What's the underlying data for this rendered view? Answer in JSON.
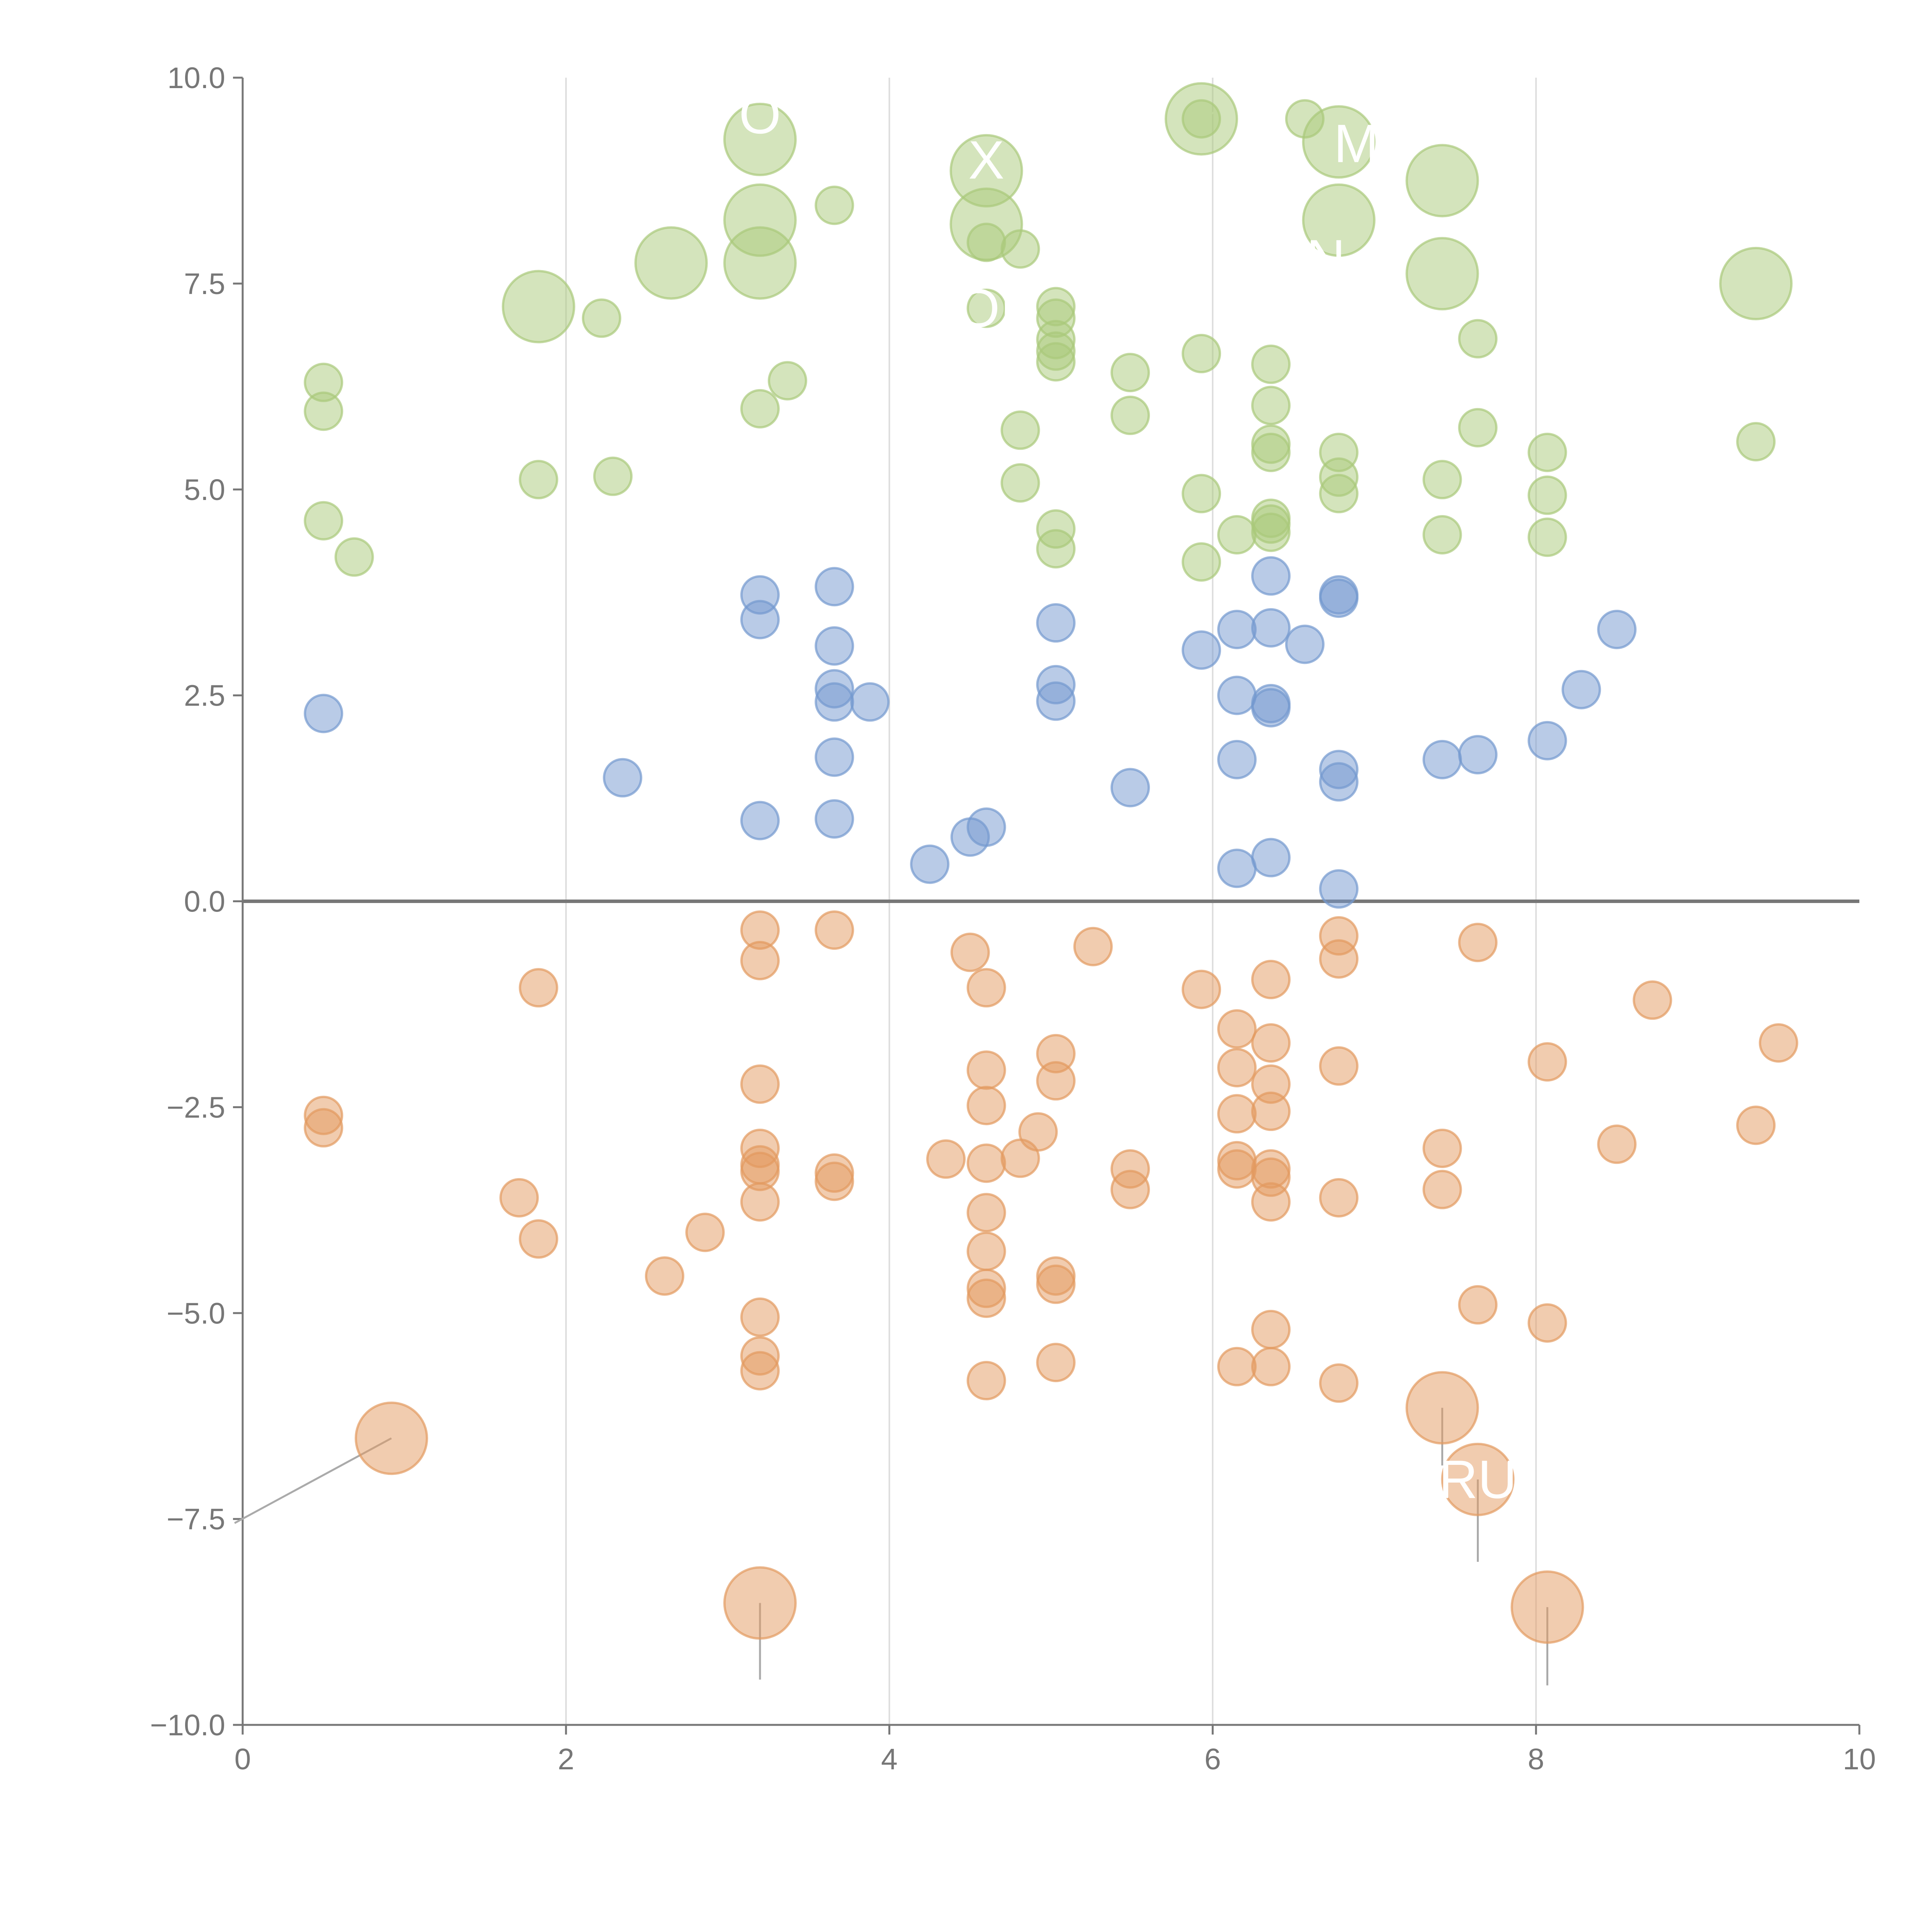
{
  "chart_data": {
    "type": "scatter",
    "title": "",
    "xlabel": "",
    "ylabel": "",
    "xlim": [
      0,
      10
    ],
    "ylim": [
      -10,
      10
    ],
    "x_ticks": [
      "0",
      "2",
      "4",
      "6",
      "8",
      "10"
    ],
    "y_ticks": [
      "10.0",
      "7.5",
      "5.0",
      "2.5",
      "0.0",
      "−2.5",
      "−5.0",
      "−7.5",
      "−10.0"
    ],
    "x_tick_values": [
      0,
      2,
      4,
      6,
      8,
      10
    ],
    "y_tick_values": [
      10,
      7.5,
      5,
      2.5,
      0,
      -2.5,
      -5,
      -7.5,
      -10
    ],
    "vertical_grid": [
      2,
      4,
      6,
      8
    ],
    "zero_line": 0,
    "colors": {
      "green": "#a9c97a",
      "blue": "#7398cf",
      "orange": "#e39a5f",
      "axis": "#777777",
      "grid": "#dddddd",
      "zero": "#777777"
    },
    "series": [
      {
        "name": "green",
        "color": "#a9c97a",
        "points": [
          [
            0.5,
            6.3
          ],
          [
            0.5,
            5.95
          ],
          [
            0.5,
            4.62
          ],
          [
            0.69,
            4.18
          ],
          [
            1.83,
            5.12
          ],
          [
            2.22,
            7.08
          ],
          [
            2.29,
            5.16
          ],
          [
            3.2,
            5.98
          ],
          [
            3.37,
            6.32
          ],
          [
            3.66,
            8.45
          ],
          [
            4.6,
            8.0
          ],
          [
            4.6,
            7.2
          ],
          [
            4.81,
            7.92
          ],
          [
            4.81,
            5.72
          ],
          [
            4.81,
            5.08
          ],
          [
            5.03,
            7.22
          ],
          [
            5.03,
            7.08
          ],
          [
            5.03,
            6.82
          ],
          [
            5.03,
            6.68
          ],
          [
            5.03,
            6.55
          ],
          [
            5.03,
            4.52
          ],
          [
            5.03,
            4.28
          ],
          [
            5.49,
            6.42
          ],
          [
            5.49,
            5.9
          ],
          [
            5.93,
            9.5
          ],
          [
            5.93,
            6.65
          ],
          [
            5.93,
            4.95
          ],
          [
            5.93,
            4.12
          ],
          [
            6.15,
            4.45
          ],
          [
            6.36,
            6.52
          ],
          [
            6.36,
            6.02
          ],
          [
            6.36,
            5.55
          ],
          [
            6.36,
            5.45
          ],
          [
            6.36,
            4.65
          ],
          [
            6.36,
            4.58
          ],
          [
            6.36,
            4.48
          ],
          [
            6.57,
            9.5
          ],
          [
            6.78,
            5.45
          ],
          [
            6.78,
            5.15
          ],
          [
            6.78,
            4.95
          ],
          [
            7.42,
            5.12
          ],
          [
            7.42,
            4.45
          ],
          [
            7.64,
            6.83
          ],
          [
            7.64,
            5.75
          ],
          [
            8.07,
            5.45
          ],
          [
            8.07,
            4.93
          ],
          [
            8.07,
            4.42
          ],
          [
            9.36,
            5.58
          ]
        ],
        "large_points": [
          [
            1.83,
            7.22
          ],
          [
            2.65,
            7.75
          ],
          [
            3.2,
            9.25
          ],
          [
            3.2,
            8.27
          ],
          [
            3.2,
            7.75
          ],
          [
            4.6,
            8.87
          ],
          [
            4.6,
            8.22
          ],
          [
            5.93,
            9.5
          ],
          [
            6.78,
            9.22
          ],
          [
            6.78,
            8.27
          ],
          [
            7.42,
            8.75
          ],
          [
            7.42,
            7.62
          ],
          [
            9.36,
            7.5
          ]
        ]
      },
      {
        "name": "blue",
        "color": "#7398cf",
        "points": [
          [
            0.5,
            2.28
          ],
          [
            2.35,
            1.5
          ],
          [
            3.2,
            3.72
          ],
          [
            3.2,
            3.42
          ],
          [
            3.2,
            0.98
          ],
          [
            3.66,
            3.82
          ],
          [
            3.66,
            3.1
          ],
          [
            3.66,
            2.58
          ],
          [
            3.66,
            2.42
          ],
          [
            3.66,
            1.75
          ],
          [
            3.66,
            1.0
          ],
          [
            3.88,
            2.42
          ],
          [
            4.25,
            0.45
          ],
          [
            4.5,
            0.78
          ],
          [
            4.6,
            0.9
          ],
          [
            5.03,
            3.38
          ],
          [
            5.03,
            2.63
          ],
          [
            5.03,
            2.43
          ],
          [
            5.49,
            1.38
          ],
          [
            5.93,
            3.05
          ],
          [
            6.15,
            3.3
          ],
          [
            6.15,
            2.5
          ],
          [
            6.15,
            1.72
          ],
          [
            6.15,
            0.4
          ],
          [
            6.36,
            3.95
          ],
          [
            6.36,
            3.32
          ],
          [
            6.36,
            2.4
          ],
          [
            6.36,
            2.35
          ],
          [
            6.36,
            0.53
          ],
          [
            6.57,
            3.12
          ],
          [
            6.78,
            3.72
          ],
          [
            6.78,
            3.68
          ],
          [
            6.78,
            1.6
          ],
          [
            6.78,
            1.45
          ],
          [
            6.78,
            0.15
          ],
          [
            7.42,
            1.72
          ],
          [
            7.64,
            1.78
          ],
          [
            8.07,
            1.95
          ],
          [
            8.28,
            2.57
          ],
          [
            8.5,
            3.3
          ]
        ],
        "large_points": []
      },
      {
        "name": "orange",
        "color": "#e39a5f",
        "points": [
          [
            0.5,
            -2.6
          ],
          [
            0.5,
            -2.75
          ],
          [
            1.71,
            -3.6
          ],
          [
            1.83,
            -1.05
          ],
          [
            1.83,
            -4.1
          ],
          [
            2.61,
            -4.55
          ],
          [
            2.86,
            -4.02
          ],
          [
            3.2,
            -0.35
          ],
          [
            3.2,
            -0.72
          ],
          [
            3.2,
            -2.22
          ],
          [
            3.2,
            -3.0
          ],
          [
            3.2,
            -3.2
          ],
          [
            3.2,
            -3.28
          ],
          [
            3.2,
            -3.65
          ],
          [
            3.2,
            -5.05
          ],
          [
            3.2,
            -5.52
          ],
          [
            3.2,
            -5.7
          ],
          [
            3.66,
            -0.35
          ],
          [
            3.66,
            -3.3
          ],
          [
            3.66,
            -3.4
          ],
          [
            4.35,
            -3.13
          ],
          [
            4.5,
            -0.62
          ],
          [
            4.6,
            -1.05
          ],
          [
            4.6,
            -2.05
          ],
          [
            4.6,
            -2.48
          ],
          [
            4.6,
            -3.18
          ],
          [
            4.6,
            -3.78
          ],
          [
            4.6,
            -4.25
          ],
          [
            4.6,
            -4.7
          ],
          [
            4.6,
            -4.82
          ],
          [
            4.6,
            -5.82
          ],
          [
            4.81,
            -3.12
          ],
          [
            4.92,
            -2.8
          ],
          [
            5.03,
            -1.85
          ],
          [
            5.03,
            -2.18
          ],
          [
            5.03,
            -4.55
          ],
          [
            5.03,
            -4.65
          ],
          [
            5.03,
            -5.6
          ],
          [
            5.26,
            -0.55
          ],
          [
            5.49,
            -3.25
          ],
          [
            5.49,
            -3.5
          ],
          [
            5.93,
            -1.07
          ],
          [
            6.15,
            -1.55
          ],
          [
            6.15,
            -2.02
          ],
          [
            6.15,
            -2.58
          ],
          [
            6.15,
            -3.15
          ],
          [
            6.15,
            -3.25
          ],
          [
            6.15,
            -5.65
          ],
          [
            6.36,
            -0.95
          ],
          [
            6.36,
            -1.72
          ],
          [
            6.36,
            -2.22
          ],
          [
            6.36,
            -2.55
          ],
          [
            6.36,
            -3.25
          ],
          [
            6.36,
            -3.35
          ],
          [
            6.36,
            -3.65
          ],
          [
            6.36,
            -5.2
          ],
          [
            6.36,
            -5.65
          ],
          [
            6.78,
            -0.42
          ],
          [
            6.78,
            -0.7
          ],
          [
            6.78,
            -2.0
          ],
          [
            6.78,
            -3.6
          ],
          [
            6.78,
            -5.85
          ],
          [
            7.42,
            -3.0
          ],
          [
            7.42,
            -3.5
          ],
          [
            7.64,
            -0.5
          ],
          [
            7.64,
            -4.9
          ],
          [
            8.07,
            -1.95
          ],
          [
            8.07,
            -5.12
          ],
          [
            8.5,
            -2.95
          ],
          [
            8.72,
            -1.2
          ],
          [
            9.36,
            -2.72
          ],
          [
            9.5,
            -1.72
          ]
        ],
        "large_points": [
          [
            0.92,
            -6.52
          ],
          [
            3.2,
            -8.52
          ],
          [
            7.42,
            -6.15
          ],
          [
            7.64,
            -7.02
          ],
          [
            8.07,
            -8.57
          ]
        ]
      }
    ],
    "leader_lines": [
      {
        "from": [
          0.92,
          -6.52
        ],
        "to": [
          -0.05,
          -7.55
        ],
        "color": "#aaaaaa"
      },
      {
        "from": [
          3.2,
          -8.52
        ],
        "to": [
          3.2,
          -9.45
        ],
        "color": "#aaaaaa"
      },
      {
        "from": [
          7.42,
          -6.15
        ],
        "to": [
          7.42,
          -6.85
        ],
        "color": "#aaaaaa"
      },
      {
        "from": [
          7.64,
          -7.02
        ],
        "to": [
          7.64,
          -8.02
        ],
        "color": "#aaaaaa"
      },
      {
        "from": [
          8.07,
          -8.57
        ],
        "to": [
          8.07,
          -9.52
        ],
        "color": "#aaaaaa"
      },
      {
        "from": [
          1.83,
          7.22
        ],
        "to": [
          1.6,
          7.15
        ],
        "color": "#ffffff"
      },
      {
        "from": [
          2.65,
          7.75
        ],
        "to": [
          2.45,
          7.85
        ],
        "color": "#ffffff"
      },
      {
        "from": [
          3.2,
          9.25
        ],
        "to": [
          3.1,
          9.35
        ],
        "color": "#ffffff"
      },
      {
        "from": [
          3.2,
          8.27
        ],
        "to": [
          3.1,
          8.0
        ],
        "color": "#ffffff"
      },
      {
        "from": [
          3.2,
          7.75
        ],
        "to": [
          3.0,
          7.55
        ],
        "color": "#ffffff"
      },
      {
        "from": [
          4.6,
          8.87
        ],
        "to": [
          4.5,
          9.05
        ],
        "color": "#ffffff"
      },
      {
        "from": [
          4.6,
          8.22
        ],
        "to": [
          4.78,
          8.35
        ],
        "color": "#ffffff"
      },
      {
        "from": [
          5.93,
          9.5
        ],
        "to": [
          6.08,
          9.65
        ],
        "color": "#ffffff"
      },
      {
        "from": [
          6.78,
          8.27
        ],
        "to": [
          6.6,
          8.05
        ],
        "color": "#ffffff"
      },
      {
        "from": [
          7.42,
          8.75
        ],
        "to": [
          7.62,
          8.88
        ],
        "color": "#ffffff"
      },
      {
        "from": [
          7.42,
          7.62
        ],
        "to": [
          7.62,
          7.42
        ],
        "color": "#ffffff"
      },
      {
        "from": [
          9.36,
          7.5
        ],
        "to": [
          9.42,
          7.92
        ],
        "color": "#ffffff"
      },
      {
        "from": [
          1.83,
          5.12
        ],
        "to": [
          1.72,
          4.95
        ],
        "color": "#ffffff"
      }
    ],
    "annotations": [
      {
        "text": "O",
        "x": 3.2,
        "y": 9.55
      },
      {
        "text": "X",
        "x": 4.6,
        "y": 9.0
      },
      {
        "text": "MB",
        "x": 7.0,
        "y": 9.2
      },
      {
        "text": "N",
        "x": 6.7,
        "y": 7.8
      },
      {
        "text": "OI",
        "x": 4.6,
        "y": 7.2
      },
      {
        "text": "RU",
        "x": 7.64,
        "y": -7.02
      }
    ]
  }
}
